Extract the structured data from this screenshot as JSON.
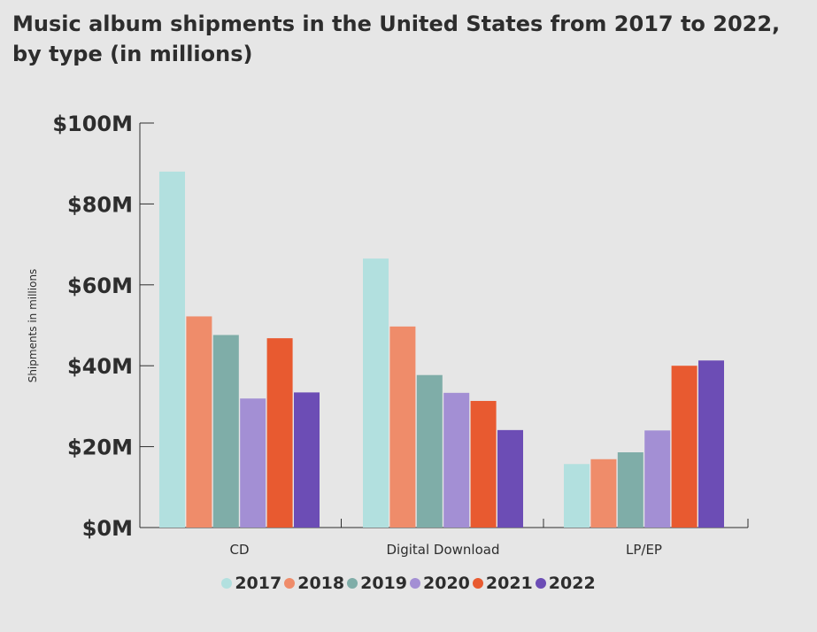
{
  "title_line1": "Music album shipments in the United States from 2017 to 2022,",
  "title_line2": "by type (in millions)",
  "chart_data": {
    "type": "bar",
    "title": "Music album shipments in the United States from 2017 to 2022, by type (in millions)",
    "xlabel": "",
    "ylabel": "Shipments in millions",
    "ylim": [
      0,
      100
    ],
    "yticks": [
      {
        "value": 0,
        "label": "$0M"
      },
      {
        "value": 20,
        "label": "$20M"
      },
      {
        "value": 40,
        "label": "$40M"
      },
      {
        "value": 60,
        "label": "$60M"
      },
      {
        "value": 80,
        "label": "$80M"
      },
      {
        "value": 100,
        "label": "$100M"
      }
    ],
    "categories": [
      "CD",
      "Digital Download",
      "LP/EP"
    ],
    "series": [
      {
        "name": "2017",
        "color": "#b2e0df",
        "values": [
          88,
          66.5,
          15.7
        ]
      },
      {
        "name": "2018",
        "color": "#ef8c6a",
        "values": [
          52.2,
          49.7,
          16.9
        ]
      },
      {
        "name": "2019",
        "color": "#7fada8",
        "values": [
          47.6,
          37.7,
          18.6
        ]
      },
      {
        "name": "2020",
        "color": "#a38fd4",
        "values": [
          31.9,
          33.3,
          24
        ]
      },
      {
        "name": "2021",
        "color": "#e85a30",
        "values": [
          46.8,
          31.3,
          40
        ]
      },
      {
        "name": "2022",
        "color": "#6c4db5",
        "values": [
          33.4,
          24.1,
          41.3
        ]
      }
    ],
    "grid": false,
    "legend_position": "bottom"
  }
}
